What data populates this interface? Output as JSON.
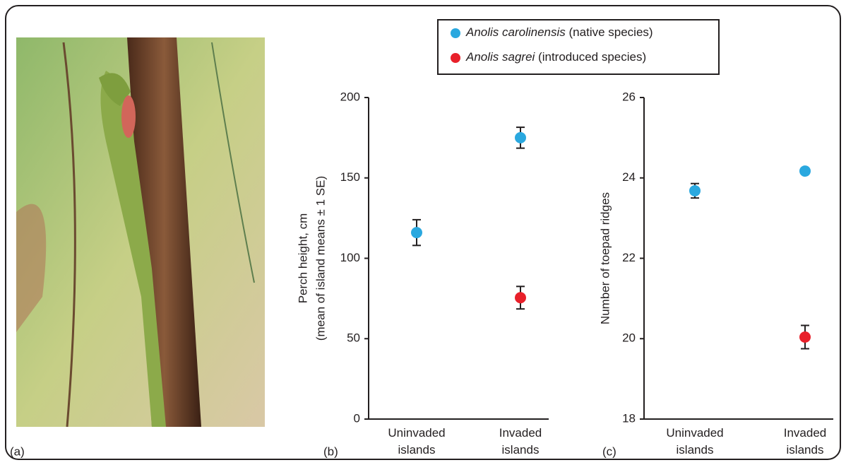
{
  "photo": {
    "label": "(a)"
  },
  "chart_data": [
    {
      "type": "scatter",
      "label": "(b)",
      "ylabel": [
        "Perch height, cm",
        "(mean of island means ± 1 SE)"
      ],
      "categories": [
        "Uninvaded islands",
        "Invaded islands"
      ],
      "ylim": [
        0,
        200
      ],
      "yticks": [
        0,
        50,
        100,
        150,
        200
      ],
      "series": [
        {
          "name": "Anolis carolinensis (native species)",
          "color": "#2aa8df",
          "values": [
            116,
            175
          ],
          "errors": [
            8,
            6.5
          ]
        },
        {
          "name": "Anolis sagrei (introduced species)",
          "color": "#e8202a",
          "values": [
            null,
            75.5
          ],
          "errors": [
            null,
            7
          ]
        }
      ]
    },
    {
      "type": "scatter",
      "label": "(c)",
      "ylabel": [
        "Number of toepad ridges"
      ],
      "categories": [
        "Uninvaded islands",
        "Invaded islands"
      ],
      "ylim": [
        18,
        26
      ],
      "yticks": [
        18,
        20,
        22,
        24,
        26
      ],
      "series": [
        {
          "color": "#2aa8df",
          "values": [
            23.68,
            24.17
          ],
          "errors": [
            0.18,
            0.07
          ]
        },
        {
          "color": "#e8202a",
          "values": [
            null,
            20.04
          ],
          "errors": [
            null,
            0.29
          ]
        }
      ]
    }
  ]
}
